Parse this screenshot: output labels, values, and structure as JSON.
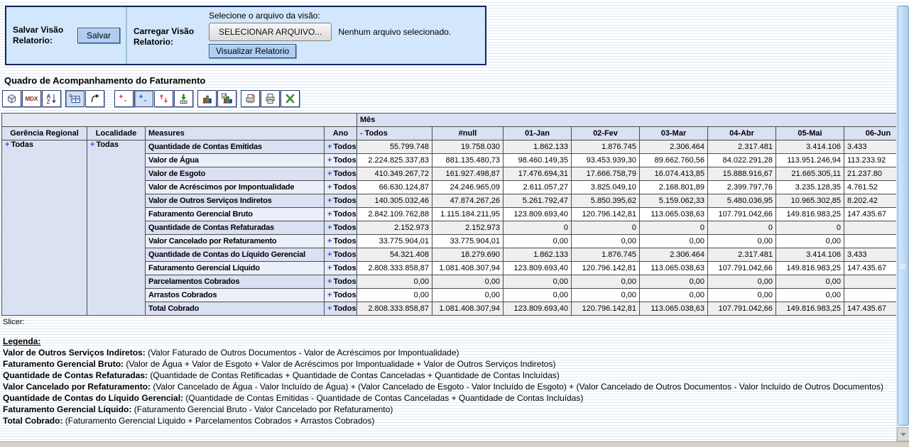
{
  "colors": {
    "panel_bg": "#d2e7fb",
    "panel_border": "#15265c",
    "button_blue": "#aecdf0",
    "header_bg": "#d9e1f2",
    "header_alt_bg": "#ebeffa",
    "row_gray": "#efefef",
    "table_border": "#4c4c4c",
    "scrollbar_thumb": "#a9cdef",
    "stripe": "#dde9f4"
  },
  "panel": {
    "save_label": "Salvar Visão Relatorio:",
    "save_button": "Salvar",
    "load_label": "Carregar Visão Relatorio:",
    "file_prompt": "Selecione o arquivo da visão:",
    "file_button": "SELECIONAR ARQUIVO...",
    "file_status": "Nenhum arquivo selecionado.",
    "view_button": "Visualizar Relatorio"
  },
  "title": "Quadro de Acompanhamento do Faturamento",
  "toolbar": {
    "mdx_label": "MDX",
    "buttons": [
      "olap-navigator",
      "mdx-editor",
      "sort",
      "show-parent-members",
      "swap-axes",
      "drill-member",
      "drill-position",
      "drill-replace",
      "drill-through",
      "show-chart",
      "chart-config",
      "print-config",
      "print-pdf",
      "export-excel"
    ],
    "pressed": [
      "show-parent-members",
      "drill-position"
    ]
  },
  "table": {
    "slicer_label": "Slicer:",
    "mes_header": "Mês",
    "columns": [
      "Gerência Regional",
      "Localidade",
      "Measures",
      "Ano"
    ],
    "value_columns": [
      {
        "prefix": "-",
        "label": "Todos",
        "align": "left"
      },
      {
        "label": "#null"
      },
      {
        "label": "01-Jan"
      },
      {
        "label": "02-Fev"
      },
      {
        "label": "03-Mar"
      },
      {
        "label": "04-Abr"
      },
      {
        "label": "05-Mai"
      },
      {
        "label": "06-Jun"
      }
    ],
    "expand_prefix": "+",
    "gerencia_value": "Todas",
    "localidade_value": "Todas",
    "rows": [
      {
        "measure": "Quantidade de Contas Emitidas",
        "ano": "Todos",
        "values": [
          "55.799.748",
          "19.758.030",
          "1.862.133",
          "1.876.745",
          "2.306.464",
          "2.317.481",
          "3.414.106",
          "3.433"
        ]
      },
      {
        "measure": "Valor de Água",
        "ano": "Todos",
        "values": [
          "2.224.825.337,83",
          "881.135.480,73",
          "98.460.149,35",
          "93.453.939,30",
          "89.662.760,56",
          "84.022.291,28",
          "113.951.246,94",
          "113.233.92"
        ]
      },
      {
        "measure": "Valor de Esgoto",
        "ano": "Todos",
        "values": [
          "410.349.267,72",
          "161.927.498,87",
          "17.476.694,31",
          "17.666.758,79",
          "16.074.413,85",
          "15.888.916,67",
          "21.665.305,11",
          "21.237.80"
        ]
      },
      {
        "measure": "Valor de Acréscimos por Impontualidade",
        "ano": "Todos",
        "values": [
          "66.630.124,87",
          "24.246.965,09",
          "2.611.057,27",
          "3.825.049,10",
          "2.168.801,89",
          "2.399.797,76",
          "3.235.128,35",
          "4.761.52"
        ]
      },
      {
        "measure": "Valor de Outros Serviços Indiretos",
        "ano": "Todos",
        "values": [
          "140.305.032,46",
          "47.874.267,26",
          "5.261.792,47",
          "5.850.395,62",
          "5.159.062,33",
          "5.480.036,95",
          "10.965.302,85",
          "8.202.42"
        ]
      },
      {
        "measure": "Faturamento Gerencial Bruto",
        "ano": "Todos",
        "values": [
          "2.842.109.762,88",
          "1.115.184.211,95",
          "123.809.693,40",
          "120.796.142,81",
          "113.065.038,63",
          "107.791.042,66",
          "149.816.983,25",
          "147.435.67"
        ]
      },
      {
        "measure": "Quantidade de Contas Refaturadas",
        "ano": "Todos",
        "values": [
          "2.152.973",
          "2.152.973",
          "0",
          "0",
          "0",
          "0",
          "0",
          ""
        ]
      },
      {
        "measure": "Valor Cancelado por Refaturamento",
        "ano": "Todos",
        "values": [
          "33.775.904,01",
          "33.775.904,01",
          "0,00",
          "0,00",
          "0,00",
          "0,00",
          "0,00",
          ""
        ]
      },
      {
        "measure": "Quantidade de Contas do Líquido Gerencial",
        "ano": "Todos",
        "values": [
          "54.321.408",
          "18.279.690",
          "1.862.133",
          "1.876.745",
          "2.306.464",
          "2.317.481",
          "3.414.106",
          "3.433"
        ]
      },
      {
        "measure": "Faturamento Gerencial Líquido",
        "ano": "Todos",
        "values": [
          "2.808.333.858,87",
          "1.081.408.307,94",
          "123.809.693,40",
          "120.796.142,81",
          "113.065.038,63",
          "107.791.042,66",
          "149.816.983,25",
          "147.435.67"
        ]
      },
      {
        "measure": "Parcelamentos Cobrados",
        "ano": "Todos",
        "values": [
          "0,00",
          "0,00",
          "0,00",
          "0,00",
          "0,00",
          "0,00",
          "0,00",
          ""
        ]
      },
      {
        "measure": "Arrastos Cobrados",
        "ano": "Todos",
        "values": [
          "0,00",
          "0,00",
          "0,00",
          "0,00",
          "0,00",
          "0,00",
          "0,00",
          ""
        ]
      },
      {
        "measure": "Total Cobrado",
        "ano": "Todos",
        "values": [
          "2.808.333.858,87",
          "1.081.408.307,94",
          "123.809.693,40",
          "120.796.142,81",
          "113.065.038,63",
          "107.791.042,66",
          "149.816.983,25",
          "147.435.67"
        ]
      }
    ]
  },
  "legend": {
    "title": "Legenda:",
    "items": [
      {
        "term": "Valor de Outros Serviços Indiretos:",
        "formula": "(Valor Faturado de Outros Documentos - Valor de Acréscimos por Impontualidade)"
      },
      {
        "term": "Faturamento Gerencial Bruto:",
        "formula": "(Valor de Água + Valor de Esgoto + Valor de Acréscimos por Impontualidade + Valor de Outros Serviços Indiretos)"
      },
      {
        "term": "Quantidade de Contas Refaturadas:",
        "formula": "(Quantidade de Contas Retificadas + Quantidade de Contas Canceladas + Quantidade de Contas Incluídas)"
      },
      {
        "term": "Valor Cancelado por Refaturamento:",
        "formula": "(Valor Cancelado de Água - Valor Incluído de Água) + (Valor Cancelado de Esgoto - Valor Incluído de Esgoto) + (Valor Cancelado de Outros Documentos - Valor Incluído de Outros Documentos)"
      },
      {
        "term": "Quantidade de Contas do Líquido Gerencial:",
        "formula": "(Quantidade de Contas Emitidas - Quantidade de Contas Canceladas + Quantidade de Contas Incluídas)"
      },
      {
        "term": "Faturamento Gerencial Líquido:",
        "formula": "(Faturamento Gerencial Bruto - Valor Cancelado por Refaturamento)"
      },
      {
        "term": "Total Cobrado:",
        "formula": "(Faturamento Gerencial Líquido + Parcelamentos Cobrados + Arrastos Cobrados)"
      }
    ]
  }
}
